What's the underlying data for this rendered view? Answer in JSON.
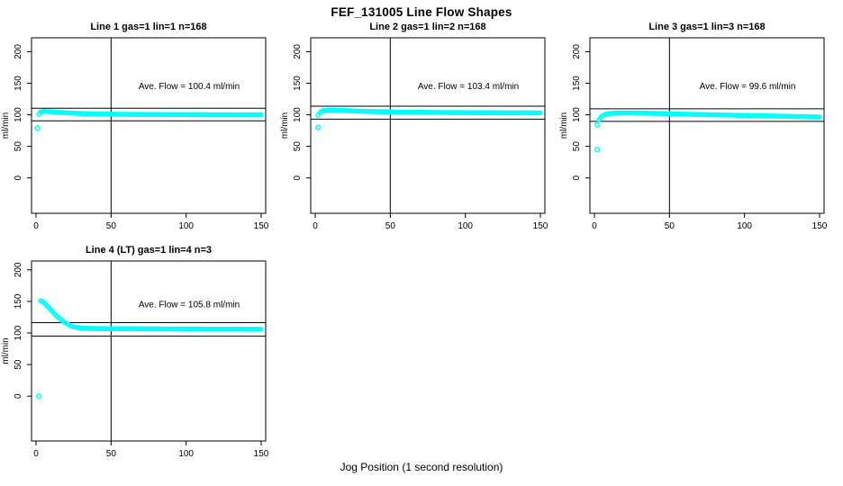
{
  "page_title": "FEF_131005  Line Flow Shapes",
  "footer_xlabel": "Jog Position (1 second resolution)",
  "colors": {
    "data_point": "#00FFFF",
    "axis": "#000000",
    "background": "#FFFFFF"
  },
  "chart_data": [
    {
      "type": "scatter",
      "title": "Line 1 gas=1 lin=1 n=168",
      "annotation": "Ave. Flow =  100.4  ml/min",
      "ave_flow_ml_min": 100.4,
      "gas": 1,
      "lin": 1,
      "n": 168,
      "ylabel": "ml/min",
      "x_ticks": [
        0,
        50,
        100,
        150
      ],
      "y_ticks": [
        0,
        50,
        100,
        150,
        200
      ],
      "xlim": [
        0,
        155
      ],
      "ylim_shown": [
        0,
        200
      ],
      "grid": false,
      "legend": "none",
      "vline_x": 50,
      "ref_lines_y": [
        110.4,
        90.4
      ],
      "series_anchors": [
        [
          2,
          101
        ],
        [
          3,
          104.5
        ],
        [
          5,
          105.5
        ],
        [
          10,
          104.8
        ],
        [
          15,
          104
        ],
        [
          20,
          103.2
        ],
        [
          25,
          102.6
        ],
        [
          30,
          102
        ],
        [
          40,
          101.4
        ],
        [
          50,
          101
        ],
        [
          65,
          100.7
        ],
        [
          80,
          100.5
        ],
        [
          100,
          100.3
        ],
        [
          125,
          100.1
        ],
        [
          150,
          100
        ]
      ],
      "outliers": [
        [
          1,
          79
        ]
      ]
    },
    {
      "type": "scatter",
      "title": "Line 2 gas=1 lin=2 n=168",
      "annotation": "Ave. Flow =  103.4  ml/min",
      "ave_flow_ml_min": 103.4,
      "gas": 1,
      "lin": 2,
      "n": 168,
      "ylabel": "ml/min",
      "x_ticks": [
        0,
        50,
        100,
        150
      ],
      "y_ticks": [
        0,
        50,
        100,
        150,
        200
      ],
      "xlim": [
        0,
        155
      ],
      "ylim_shown": [
        0,
        200
      ],
      "grid": false,
      "legend": "none",
      "vline_x": 50,
      "ref_lines_y": [
        113.7,
        93.1
      ],
      "series_anchors": [
        [
          2,
          99
        ],
        [
          3,
          103
        ],
        [
          5,
          106.5
        ],
        [
          8,
          107.5
        ],
        [
          12,
          107.5
        ],
        [
          18,
          107
        ],
        [
          25,
          106.2
        ],
        [
          35,
          105.4
        ],
        [
          50,
          104.6
        ],
        [
          70,
          104
        ],
        [
          90,
          103.6
        ],
        [
          110,
          103.3
        ],
        [
          130,
          103.1
        ],
        [
          150,
          103
        ]
      ],
      "outliers": [
        [
          2,
          80
        ]
      ]
    },
    {
      "type": "scatter",
      "title": "Line 3 gas=1 lin=3 n=168",
      "annotation": "Ave. Flow =  99.6  ml/min",
      "ave_flow_ml_min": 99.6,
      "gas": 1,
      "lin": 3,
      "n": 168,
      "ylabel": "ml/min",
      "x_ticks": [
        0,
        50,
        100,
        150
      ],
      "y_ticks": [
        0,
        50,
        100,
        150,
        200
      ],
      "xlim": [
        0,
        155
      ],
      "ylim_shown": [
        0,
        200
      ],
      "grid": false,
      "legend": "none",
      "vline_x": 50,
      "ref_lines_y": [
        109.6,
        89.6
      ],
      "series_anchors": [
        [
          3,
          92
        ],
        [
          5,
          98
        ],
        [
          8,
          101
        ],
        [
          12,
          102.5
        ],
        [
          20,
          103
        ],
        [
          30,
          102.8
        ],
        [
          45,
          102
        ],
        [
          60,
          101
        ],
        [
          80,
          100
        ],
        [
          100,
          99
        ],
        [
          120,
          98
        ],
        [
          135,
          97.3
        ],
        [
          150,
          96.5
        ]
      ],
      "outliers": [
        [
          2,
          84
        ],
        [
          2,
          45
        ]
      ]
    },
    {
      "type": "scatter",
      "title": "Line 4 (LT) gas=1 lin=4 n=3",
      "annotation": "Ave. Flow =  105.8  ml/min",
      "ave_flow_ml_min": 105.8,
      "gas": 1,
      "lin": 4,
      "n": 3,
      "ylabel": "ml/min",
      "x_ticks": [
        0,
        50,
        100,
        150
      ],
      "y_ticks": [
        0,
        50,
        100,
        150,
        200
      ],
      "xlim": [
        0,
        155
      ],
      "ylim_shown": [
        0,
        200
      ],
      "grid": false,
      "legend": "none",
      "vline_x": 50,
      "ref_lines_y": [
        116.4,
        95.2
      ],
      "series_anchors": [
        [
          3,
          151
        ],
        [
          5,
          149
        ],
        [
          7,
          144
        ],
        [
          9,
          139
        ],
        [
          11,
          134
        ],
        [
          13,
          129
        ],
        [
          15,
          124.5
        ],
        [
          17,
          120.5
        ],
        [
          19,
          117
        ],
        [
          21,
          114
        ],
        [
          23,
          111.5
        ],
        [
          25,
          110
        ],
        [
          27,
          109
        ],
        [
          30,
          108
        ],
        [
          34,
          107.4
        ],
        [
          40,
          107
        ],
        [
          55,
          106.8
        ],
        [
          70,
          106.6
        ],
        [
          90,
          106.4
        ],
        [
          110,
          106.2
        ],
        [
          130,
          106.1
        ],
        [
          150,
          106
        ]
      ],
      "outliers": [
        [
          2,
          0
        ]
      ]
    }
  ]
}
